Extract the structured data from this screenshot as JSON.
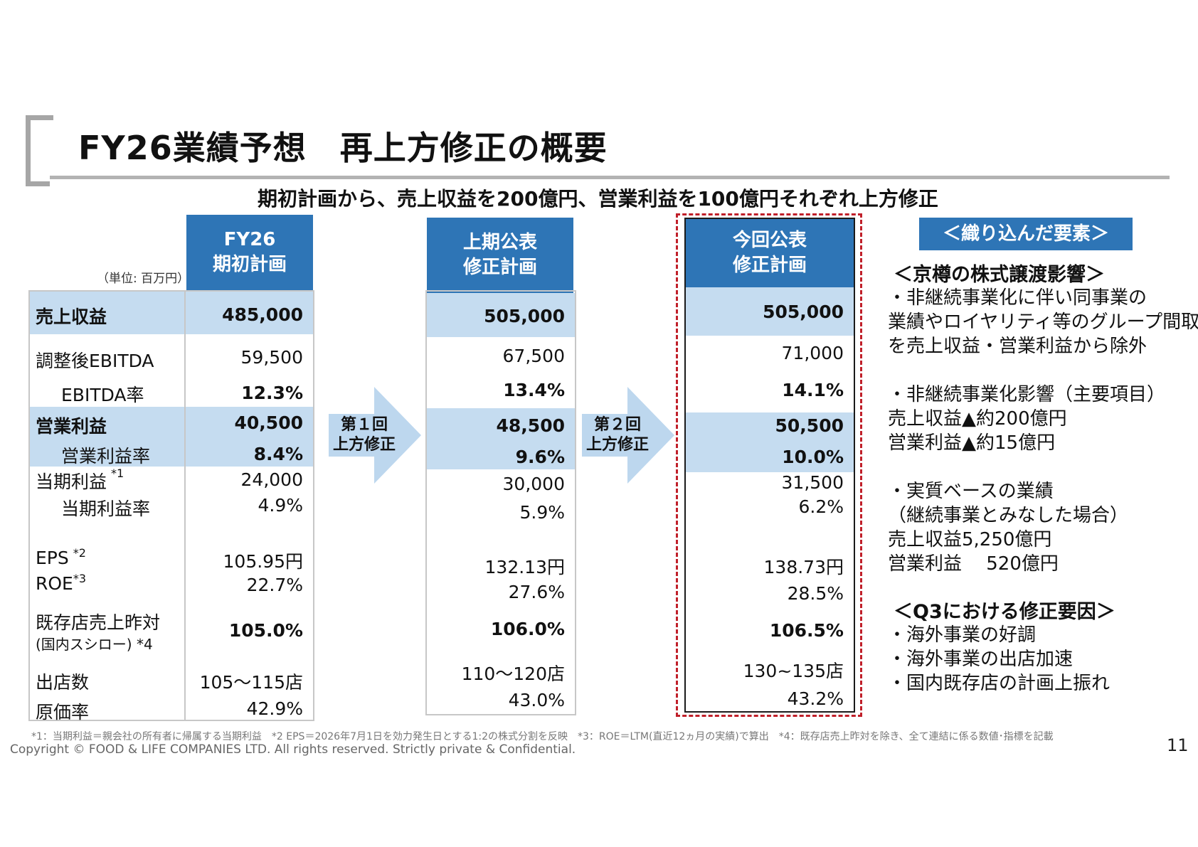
{
  "title": "FY26業績予想　再上方修正の概要",
  "subtitle": "期初計画から、売上収益を200億円、営業利益を100億円それぞれ上方修正",
  "unit": "（単位: 百万円）",
  "columns": [
    {
      "header_line1": "FY26",
      "header_line2": "期初計画"
    },
    {
      "header_line1": "上期公表",
      "header_line2": "修正計画"
    },
    {
      "header_line1": "今回公表",
      "header_line2": "修正計画"
    }
  ],
  "rows": {
    "revenue": {
      "label": "売上収益",
      "v1": "485,000",
      "v2": "505,000",
      "v3": "505,000"
    },
    "ebitda": {
      "label": "調整後EBITDA",
      "v1": "59,500",
      "v2": "67,500",
      "v3": "71,000"
    },
    "ebitda_rate": {
      "label": "EBITDA率",
      "v1": "12.3%",
      "v2": "13.4%",
      "v3": "14.1%"
    },
    "op_profit": {
      "label": "営業利益",
      "v1": "40,500",
      "v2": "48,500",
      "v3": "50,500"
    },
    "op_rate": {
      "label": "営業利益率",
      "v1": "8.4%",
      "v2": "9.6%",
      "v3": "10.0%"
    },
    "net_profit": {
      "label": "当期利益",
      "note": "*1",
      "v1": "24,000",
      "v2": "30,000",
      "v3": "31,500"
    },
    "net_rate": {
      "label": "当期利益率",
      "v1": "4.9%",
      "v2": "5.9%",
      "v3": "6.2%"
    },
    "eps": {
      "label": "EPS",
      "note": "*2",
      "v1": "105.95円",
      "v2": "132.13円",
      "v3": "138.73円"
    },
    "roe": {
      "label": "ROE",
      "note": "*3",
      "v1": "22.7%",
      "v2": "27.6%",
      "v3": "28.5%"
    },
    "sss": {
      "label_line1": "既存店売上昨対",
      "label_line2": "(国内スシロー) *4",
      "v1": "105.0%",
      "v2": "106.0%",
      "v3": "106.5%"
    },
    "stores": {
      "label": "出店数",
      "v1": "105～115店",
      "v2": "110～120店",
      "v3": "130~135店"
    },
    "cost_rate": {
      "label": "原価率",
      "v1": "42.9%",
      "v2": "43.0%",
      "v3": "43.2%"
    }
  },
  "arrows": [
    {
      "line1": "第１回",
      "line2": "上方修正"
    },
    {
      "line1": "第２回",
      "line2": "上方修正"
    }
  ],
  "factors": {
    "header": "＜織り込んだ要素＞",
    "sections": [
      {
        "heading": "＜京樽の株式譲渡影響＞",
        "lines": [
          "・非継続事業化に伴い同事業の",
          "業績やロイヤリティ等のグループ間取引",
          "を売上収益・営業利益から除外"
        ]
      },
      {
        "lines": [
          "・非継続事業化影響（主要項目）",
          "売上収益▲約200億円",
          "営業利益▲約15億円"
        ]
      },
      {
        "lines": [
          "・実質ベースの業績",
          "（継続事業とみなした場合）",
          "売上収益5,250億円",
          "営業利益　 520億円"
        ]
      },
      {
        "heading": "＜Q3における修正要因＞",
        "lines": [
          "・海外事業の好調",
          "・海外事業の出店加速",
          "・国内既存店の計画上振れ"
        ]
      }
    ]
  },
  "footnote": "*1：当期利益＝親会社の所有者に帰属する当期利益　*2 EPS＝2026年7月1日を効力発生日とする1:2の株式分割を反映　*3：ROE＝LTM(直近12ヵ月の実績)で算出　*4：既存店売上昨対を除き、全て連結に係る数値･指標を記載",
  "copyright": "Copyright © FOOD & LIFE COMPANIES LTD. All rights reserved. Strictly private & Confidential.",
  "page_number": "11",
  "colors": {
    "header_blue": "#2e75b6",
    "band_blue": "#c5dcf0",
    "dash_red": "#c0202a"
  }
}
